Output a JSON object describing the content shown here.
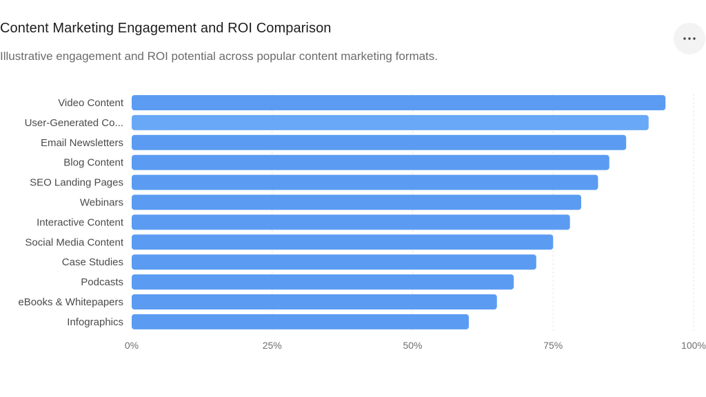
{
  "title": "Content Marketing Engagement and ROI Comparison",
  "subtitle": "Illustrative engagement and ROI potential across popular content marketing formats.",
  "menu": {
    "icon": "more-horizontal-icon"
  },
  "colors": {
    "bar": "#5b9cf2",
    "bar_highlight": "#69a8f6",
    "grid": "#e3e3e3"
  },
  "chart_data": {
    "type": "bar",
    "orientation": "horizontal",
    "categories": [
      "Video Content",
      "User-Generated Co...",
      "Email Newsletters",
      "Blog Content",
      "SEO Landing Pages",
      "Webinars",
      "Interactive Content",
      "Social Media Content",
      "Case Studies",
      "Podcasts",
      "eBooks & Whitepapers",
      "Infographics"
    ],
    "values": [
      95,
      92,
      88,
      85,
      83,
      80,
      78,
      75,
      72,
      68,
      65,
      60
    ],
    "xlim": [
      0,
      100
    ],
    "xticks": [
      0,
      25,
      50,
      75,
      100
    ],
    "xtick_labels": [
      "0%",
      "25%",
      "50%",
      "75%",
      "100%"
    ],
    "grid": true,
    "legend": false,
    "highlighted_index": 1
  }
}
